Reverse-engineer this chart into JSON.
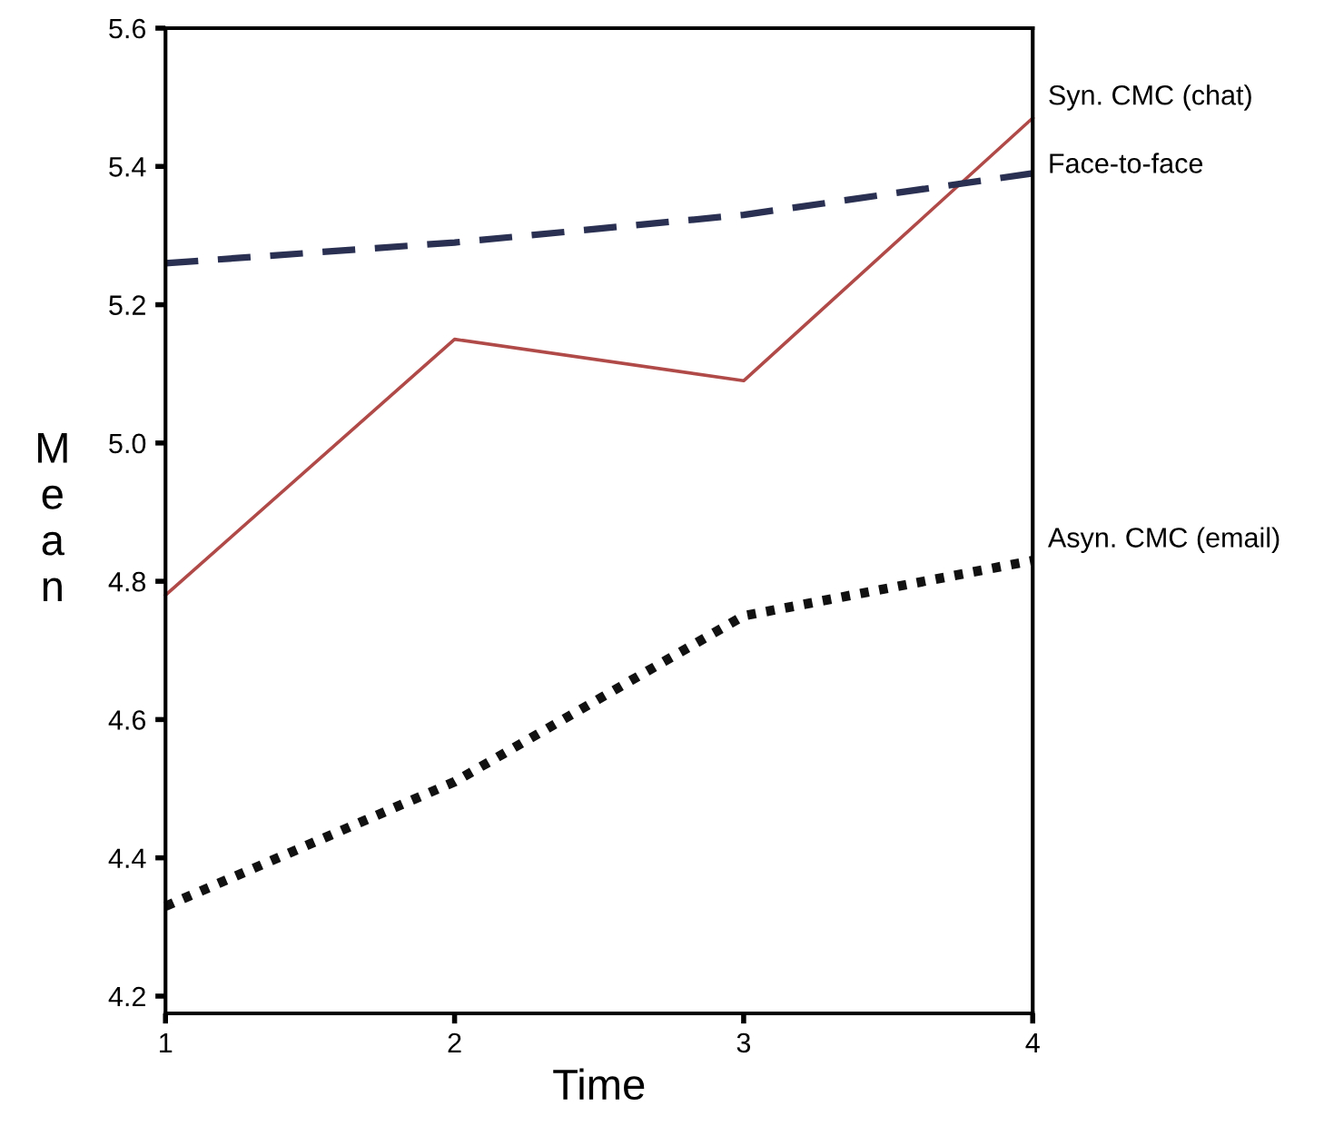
{
  "chart_data": {
    "type": "line",
    "xlabel": "Time",
    "ylabel": "Mean",
    "x": [
      1,
      2,
      3,
      4
    ],
    "xlim": [
      1,
      4
    ],
    "xticks": [
      1,
      2,
      3,
      4
    ],
    "ylim": [
      4.175,
      5.6
    ],
    "yticks": [
      {
        "value": 4.2,
        "label": "4.2"
      },
      {
        "value": 4.4,
        "label": "4.4"
      },
      {
        "value": 4.6,
        "label": "4.6"
      },
      {
        "value": 4.8,
        "label": "4.8"
      },
      {
        "value": 5.0,
        "label": "5.0"
      },
      {
        "value": 5.2,
        "label": "5.2"
      },
      {
        "value": 5.4,
        "label": "5.4"
      },
      {
        "value": 5.6,
        "label": "5.6"
      }
    ],
    "grid": false,
    "legend": false,
    "marker": "none",
    "series": [
      {
        "name": "Syn. CMC (chat)",
        "color": "#b04a48",
        "line_style": "solid",
        "values": [
          4.78,
          5.15,
          5.09,
          5.47
        ]
      },
      {
        "name": "Face-to-face",
        "color": "#2a3052",
        "line_style": "dashed",
        "values": [
          5.26,
          5.29,
          5.33,
          5.39
        ]
      },
      {
        "name": "Asyn. CMC (email)",
        "color": "#111111",
        "line_style": "dotted",
        "values": [
          4.33,
          4.51,
          4.75,
          4.83
        ]
      }
    ]
  }
}
